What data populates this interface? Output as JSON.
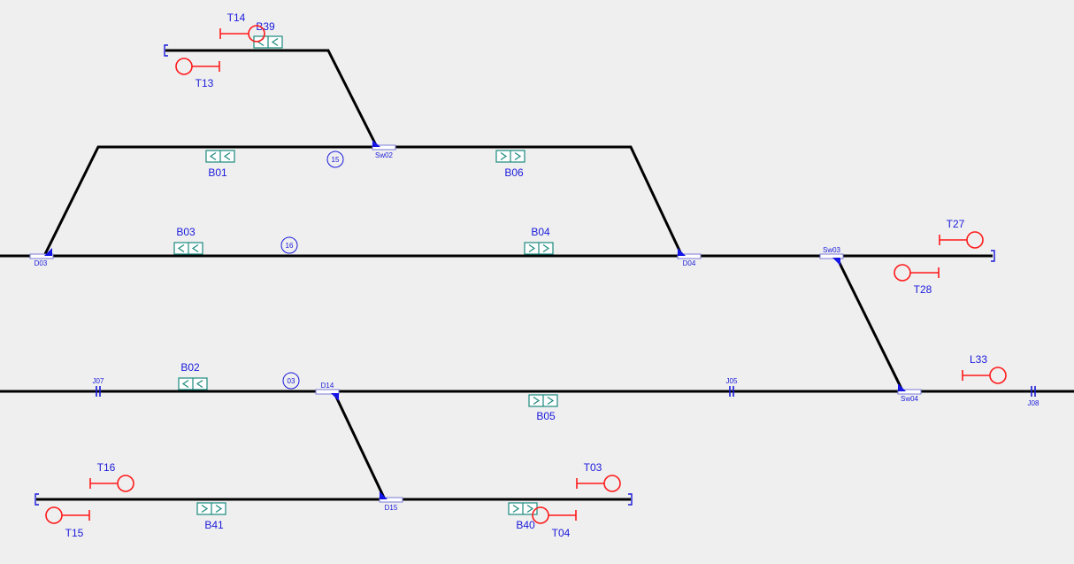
{
  "diagram": {
    "blocks": [
      {
        "id": "b39",
        "label": "B39",
        "dir": "left"
      },
      {
        "id": "b01",
        "label": "B01",
        "dir": "left"
      },
      {
        "id": "b06",
        "label": "B06",
        "dir": "right"
      },
      {
        "id": "b03",
        "label": "B03",
        "dir": "left"
      },
      {
        "id": "b04",
        "label": "B04",
        "dir": "right"
      },
      {
        "id": "b02",
        "label": "B02",
        "dir": "left"
      },
      {
        "id": "b05",
        "label": "B05",
        "dir": "right"
      },
      {
        "id": "b41",
        "label": "B41",
        "dir": "right"
      },
      {
        "id": "b40",
        "label": "B40",
        "dir": "right"
      }
    ],
    "signals": [
      {
        "id": "t14",
        "label": "T14"
      },
      {
        "id": "t13",
        "label": "T13"
      },
      {
        "id": "t27",
        "label": "T27"
      },
      {
        "id": "t28",
        "label": "T28"
      },
      {
        "id": "l33",
        "label": "L33"
      },
      {
        "id": "t16",
        "label": "T16"
      },
      {
        "id": "t15",
        "label": "T15"
      },
      {
        "id": "t03",
        "label": "T03"
      },
      {
        "id": "t04",
        "label": "T04"
      }
    ],
    "switches": [
      {
        "id": "sw02",
        "label": "Sw02"
      },
      {
        "id": "d03",
        "label": "D03"
      },
      {
        "id": "d04",
        "label": "D04"
      },
      {
        "id": "sw03",
        "label": "Sw03"
      },
      {
        "id": "d14",
        "label": "D14"
      },
      {
        "id": "sw04",
        "label": "Sw04"
      },
      {
        "id": "d15",
        "label": "D15"
      }
    ],
    "joints": [
      {
        "id": "j07",
        "label": "J07"
      },
      {
        "id": "j05",
        "label": "J05"
      },
      {
        "id": "j08",
        "label": "J08"
      }
    ],
    "markers": [
      {
        "id": "m15",
        "label": "15"
      },
      {
        "id": "m16",
        "label": "16"
      },
      {
        "id": "m03",
        "label": "03"
      }
    ]
  }
}
